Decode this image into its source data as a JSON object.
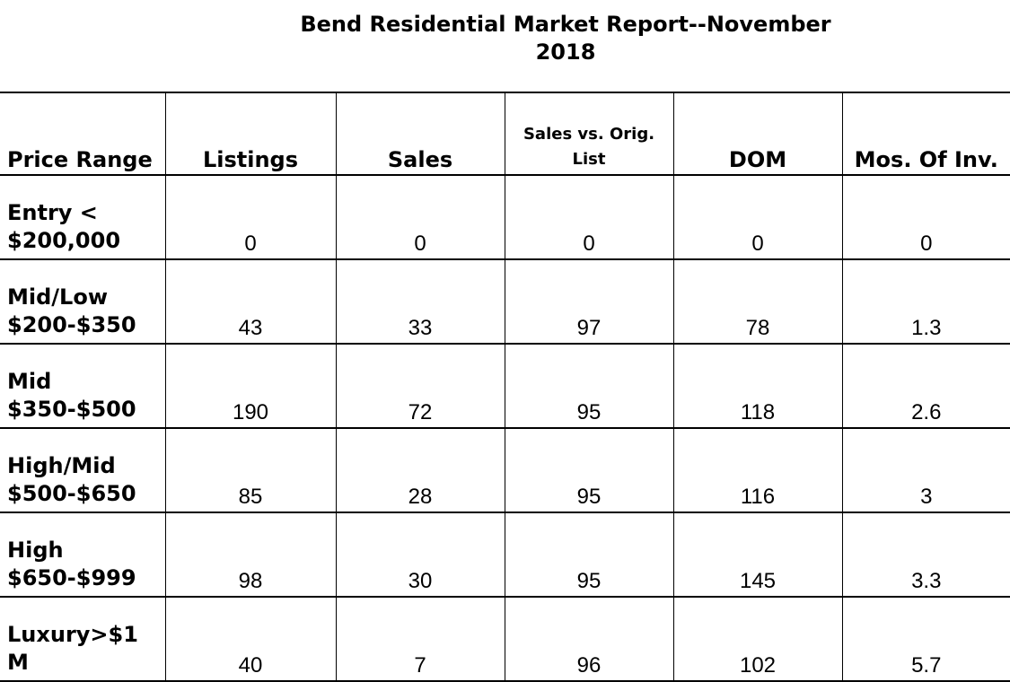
{
  "title": "Bend Residential Market Report--November 2018",
  "table": {
    "headers": [
      "Price Range",
      "Listings",
      "Sales",
      "Sales vs. Orig. List",
      "DOM",
      "Mos. Of Inv."
    ],
    "rows": [
      {
        "range": "Entry < $200,000",
        "values": [
          "0",
          "0",
          "0",
          "0",
          "0"
        ]
      },
      {
        "range": "Mid/Low $200-$350",
        "values": [
          "43",
          "33",
          "97",
          "78",
          "1.3"
        ]
      },
      {
        "range": "Mid $350-$500",
        "values": [
          "190",
          "72",
          "95",
          "118",
          "2.6"
        ]
      },
      {
        "range": "High/Mid $500-$650",
        "values": [
          "85",
          "28",
          "95",
          "116",
          "3"
        ]
      },
      {
        "range": "High $650-$999",
        "values": [
          "98",
          "30",
          "95",
          "145",
          "3.3"
        ]
      },
      {
        "range": "Luxury>$1 M",
        "values": [
          "40",
          "7",
          "96",
          "102",
          "5.7"
        ]
      }
    ]
  }
}
